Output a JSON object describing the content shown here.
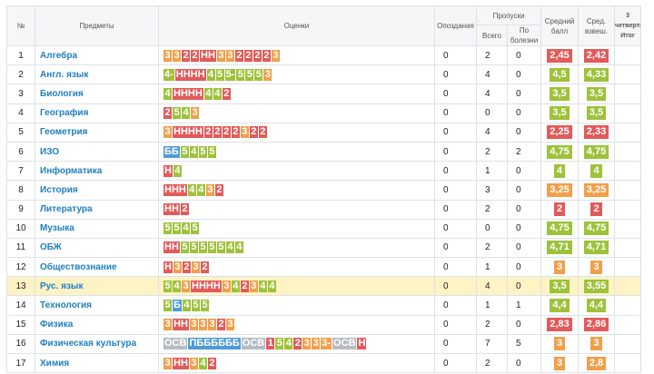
{
  "header": {
    "num": "№",
    "subjects": "Предметы",
    "marks": "Оценки",
    "late": "Опоздания",
    "absences": "Пропуски",
    "total": "Всего",
    "sick": "По болезни",
    "avg": "Средний балл",
    "weighted": "Сред. взвеш.",
    "term": "3 четверть Итог"
  },
  "colors": {
    "orange": "#f0a04b",
    "green": "#9ec23b",
    "red": "#e25a5a",
    "blue": "#4f9bd6",
    "grey": "#b7bcc0",
    "highlight": "#fdf3c4",
    "link": "#1e7fc4"
  },
  "rows": [
    {
      "num": "1",
      "subject": "Алгебра",
      "marks": [
        {
          "t": "3",
          "c": "o"
        },
        {
          "t": "3",
          "c": "o"
        },
        {
          "t": "2",
          "c": "r"
        },
        {
          "t": "2",
          "c": "r"
        },
        {
          "t": "НН",
          "c": "r"
        },
        {
          "t": "3",
          "c": "o"
        },
        {
          "t": "3",
          "c": "o"
        },
        {
          "t": "2",
          "c": "r"
        },
        {
          "t": "2",
          "c": "r"
        },
        {
          "t": "2",
          "c": "r"
        },
        {
          "t": "2",
          "c": "r"
        },
        {
          "t": "3",
          "c": "o"
        }
      ],
      "late": "0",
      "total": "2",
      "sick": "0",
      "avg": "2,45",
      "avg_c": "r",
      "wavg": "2,42",
      "wavg_c": "r",
      "highlight": false
    },
    {
      "num": "2",
      "subject": "Англ. язык",
      "marks": [
        {
          "t": "4-",
          "c": "g"
        },
        {
          "t": "НННН",
          "c": "r"
        },
        {
          "t": "4",
          "c": "g"
        },
        {
          "t": "5",
          "c": "g"
        },
        {
          "t": "5-",
          "c": "g"
        },
        {
          "t": "5",
          "c": "g"
        },
        {
          "t": "5",
          "c": "g"
        },
        {
          "t": "5",
          "c": "g"
        },
        {
          "t": "3",
          "c": "o"
        }
      ],
      "late": "0",
      "total": "4",
      "sick": "0",
      "avg": "4,5",
      "avg_c": "g",
      "wavg": "4,33",
      "wavg_c": "g",
      "highlight": false
    },
    {
      "num": "3",
      "subject": "Биология",
      "marks": [
        {
          "t": "4",
          "c": "g"
        },
        {
          "t": "НННН",
          "c": "r"
        },
        {
          "t": "4",
          "c": "g"
        },
        {
          "t": "4",
          "c": "g"
        },
        {
          "t": "2",
          "c": "r"
        }
      ],
      "late": "0",
      "total": "4",
      "sick": "0",
      "avg": "3,5",
      "avg_c": "g",
      "wavg": "3,5",
      "wavg_c": "g",
      "highlight": false
    },
    {
      "num": "4",
      "subject": "География",
      "marks": [
        {
          "t": "2",
          "c": "r"
        },
        {
          "t": "5",
          "c": "g"
        },
        {
          "t": "4",
          "c": "g"
        },
        {
          "t": "3",
          "c": "o"
        }
      ],
      "late": "0",
      "total": "0",
      "sick": "0",
      "avg": "3,5",
      "avg_c": "g",
      "wavg": "3,5",
      "wavg_c": "g",
      "highlight": false
    },
    {
      "num": "5",
      "subject": "Геометрия",
      "marks": [
        {
          "t": "3",
          "c": "o"
        },
        {
          "t": "НННН",
          "c": "r"
        },
        {
          "t": "2",
          "c": "r"
        },
        {
          "t": "2",
          "c": "r"
        },
        {
          "t": "2",
          "c": "r"
        },
        {
          "t": "2",
          "c": "r"
        },
        {
          "t": "3",
          "c": "o"
        },
        {
          "t": "2",
          "c": "r"
        },
        {
          "t": "2",
          "c": "r"
        }
      ],
      "late": "0",
      "total": "4",
      "sick": "0",
      "avg": "2,25",
      "avg_c": "r",
      "wavg": "2,33",
      "wavg_c": "r",
      "highlight": false
    },
    {
      "num": "6",
      "subject": "ИЗО",
      "marks": [
        {
          "t": "ББ",
          "c": "b"
        },
        {
          "t": "5",
          "c": "g"
        },
        {
          "t": "4",
          "c": "g"
        },
        {
          "t": "5",
          "c": "g"
        },
        {
          "t": "5",
          "c": "g"
        }
      ],
      "late": "0",
      "total": "2",
      "sick": "2",
      "avg": "4,75",
      "avg_c": "g",
      "wavg": "4,75",
      "wavg_c": "g",
      "highlight": false
    },
    {
      "num": "7",
      "subject": "Информатика",
      "marks": [
        {
          "t": "Н",
          "c": "r"
        },
        {
          "t": "4",
          "c": "g"
        }
      ],
      "late": "0",
      "total": "1",
      "sick": "0",
      "avg": "4",
      "avg_c": "g",
      "wavg": "4",
      "wavg_c": "g",
      "highlight": false
    },
    {
      "num": "8",
      "subject": "История",
      "marks": [
        {
          "t": "ННН",
          "c": "r"
        },
        {
          "t": "4",
          "c": "g"
        },
        {
          "t": "4",
          "c": "g"
        },
        {
          "t": "3",
          "c": "o"
        },
        {
          "t": "2",
          "c": "r"
        }
      ],
      "late": "0",
      "total": "3",
      "sick": "0",
      "avg": "3,25",
      "avg_c": "o",
      "wavg": "3,25",
      "wavg_c": "o",
      "highlight": false
    },
    {
      "num": "9",
      "subject": "Литература",
      "marks": [
        {
          "t": "НН",
          "c": "r"
        },
        {
          "t": "2",
          "c": "r"
        }
      ],
      "late": "0",
      "total": "2",
      "sick": "0",
      "avg": "2",
      "avg_c": "r",
      "wavg": "2",
      "wavg_c": "r",
      "highlight": false
    },
    {
      "num": "10",
      "subject": "Музыка",
      "marks": [
        {
          "t": "5",
          "c": "g"
        },
        {
          "t": "5",
          "c": "g"
        },
        {
          "t": "4",
          "c": "g"
        },
        {
          "t": "5",
          "c": "g"
        }
      ],
      "late": "0",
      "total": "0",
      "sick": "0",
      "avg": "4,75",
      "avg_c": "g",
      "wavg": "4,75",
      "wavg_c": "g",
      "highlight": false
    },
    {
      "num": "11",
      "subject": "ОБЖ",
      "marks": [
        {
          "t": "НН",
          "c": "r"
        },
        {
          "t": "5",
          "c": "g"
        },
        {
          "t": "5",
          "c": "g"
        },
        {
          "t": "5",
          "c": "g"
        },
        {
          "t": "5",
          "c": "g"
        },
        {
          "t": "5",
          "c": "g"
        },
        {
          "t": "4",
          "c": "g"
        },
        {
          "t": "4",
          "c": "g"
        }
      ],
      "late": "0",
      "total": "2",
      "sick": "0",
      "avg": "4,71",
      "avg_c": "g",
      "wavg": "4,71",
      "wavg_c": "g",
      "highlight": false
    },
    {
      "num": "12",
      "subject": "Обществознание",
      "marks": [
        {
          "t": "Н",
          "c": "r"
        },
        {
          "t": "3",
          "c": "o"
        },
        {
          "t": "2",
          "c": "r"
        },
        {
          "t": "3",
          "c": "o"
        },
        {
          "t": "2",
          "c": "r"
        }
      ],
      "late": "0",
      "total": "1",
      "sick": "0",
      "avg": "3",
      "avg_c": "o",
      "wavg": "3",
      "wavg_c": "o",
      "highlight": false
    },
    {
      "num": "13",
      "subject": "Рус. язык",
      "marks": [
        {
          "t": "5",
          "c": "g"
        },
        {
          "t": "4",
          "c": "g"
        },
        {
          "t": "3",
          "c": "o"
        },
        {
          "t": "НННН",
          "c": "r"
        },
        {
          "t": "3",
          "c": "o"
        },
        {
          "t": "4",
          "c": "g"
        },
        {
          "t": "2",
          "c": "r"
        },
        {
          "t": "3",
          "c": "o"
        },
        {
          "t": "4",
          "c": "g"
        },
        {
          "t": "4",
          "c": "g"
        }
      ],
      "late": "0",
      "total": "4",
      "sick": "0",
      "avg": "3,5",
      "avg_c": "g",
      "wavg": "3,55",
      "wavg_c": "g",
      "highlight": true
    },
    {
      "num": "14",
      "subject": "Технология",
      "marks": [
        {
          "t": "5",
          "c": "g"
        },
        {
          "t": "Б",
          "c": "b"
        },
        {
          "t": "4",
          "c": "g"
        },
        {
          "t": "5",
          "c": "g"
        },
        {
          "t": "5",
          "c": "g"
        }
      ],
      "late": "0",
      "total": "1",
      "sick": "1",
      "avg": "4,4",
      "avg_c": "g",
      "wavg": "4,4",
      "wavg_c": "g",
      "highlight": false
    },
    {
      "num": "15",
      "subject": "Физика",
      "marks": [
        {
          "t": "3",
          "c": "o"
        },
        {
          "t": "НН",
          "c": "r"
        },
        {
          "t": "3",
          "c": "o"
        },
        {
          "t": "3",
          "c": "o"
        },
        {
          "t": "3",
          "c": "o"
        },
        {
          "t": "2",
          "c": "r"
        },
        {
          "t": "3",
          "c": "o"
        }
      ],
      "late": "0",
      "total": "2",
      "sick": "0",
      "avg": "2,83",
      "avg_c": "r",
      "wavg": "2,86",
      "wavg_c": "r",
      "highlight": false
    },
    {
      "num": "16",
      "subject": "Физическая культура",
      "marks": [
        {
          "t": "ОСВ",
          "c": "s"
        },
        {
          "t": "ПББББББ",
          "c": "b"
        },
        {
          "t": "ОСВ",
          "c": "s"
        },
        {
          "t": "1",
          "c": "r"
        },
        {
          "t": "5",
          "c": "g"
        },
        {
          "t": "4",
          "c": "g"
        },
        {
          "t": "2",
          "c": "r"
        },
        {
          "t": "3",
          "c": "o"
        },
        {
          "t": "3",
          "c": "o"
        },
        {
          "t": "3-",
          "c": "o"
        },
        {
          "t": "ОСВ",
          "c": "s"
        },
        {
          "t": "Н",
          "c": "r"
        }
      ],
      "late": "0",
      "total": "7",
      "sick": "5",
      "avg": "3",
      "avg_c": "o",
      "wavg": "3",
      "wavg_c": "o",
      "highlight": false
    },
    {
      "num": "17",
      "subject": "Химия",
      "marks": [
        {
          "t": "3",
          "c": "o"
        },
        {
          "t": "НН",
          "c": "r"
        },
        {
          "t": "3",
          "c": "o"
        },
        {
          "t": "4",
          "c": "g"
        },
        {
          "t": "2",
          "c": "r"
        }
      ],
      "late": "0",
      "total": "2",
      "sick": "0",
      "avg": "3",
      "avg_c": "o",
      "wavg": "2,8",
      "wavg_c": "o",
      "highlight": false
    }
  ]
}
